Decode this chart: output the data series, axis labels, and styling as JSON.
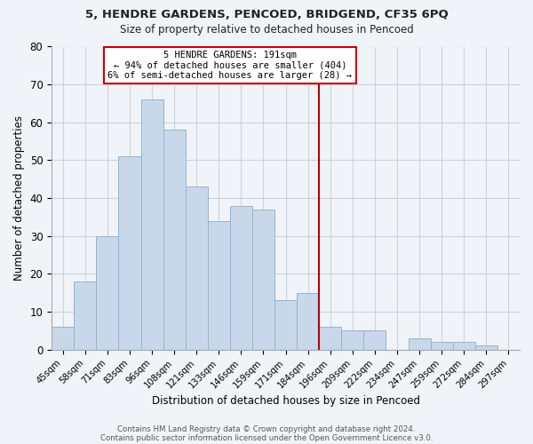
{
  "title1": "5, HENDRE GARDENS, PENCOED, BRIDGEND, CF35 6PQ",
  "title2": "Size of property relative to detached houses in Pencoed",
  "xlabel": "Distribution of detached houses by size in Pencoed",
  "ylabel": "Number of detached properties",
  "bar_labels": [
    "45sqm",
    "58sqm",
    "71sqm",
    "83sqm",
    "96sqm",
    "108sqm",
    "121sqm",
    "133sqm",
    "146sqm",
    "159sqm",
    "171sqm",
    "184sqm",
    "196sqm",
    "209sqm",
    "222sqm",
    "234sqm",
    "247sqm",
    "259sqm",
    "272sqm",
    "284sqm",
    "297sqm"
  ],
  "bar_values": [
    6,
    18,
    30,
    51,
    66,
    58,
    43,
    34,
    38,
    37,
    13,
    15,
    6,
    5,
    5,
    0,
    3,
    2,
    2,
    1,
    0
  ],
  "bar_color": "#c8d8ea",
  "bar_edge_color": "#93b4cc",
  "vline_color": "#bb0000",
  "annotation_title": "5 HENDRE GARDENS: 191sqm",
  "annotation_line1": "← 94% of detached houses are smaller (404)",
  "annotation_line2": "6% of semi-detached houses are larger (28) →",
  "annotation_box_color": "#ffffff",
  "annotation_border_color": "#cc0000",
  "ylim": [
    0,
    80
  ],
  "yticks": [
    0,
    10,
    20,
    30,
    40,
    50,
    60,
    70,
    80
  ],
  "grid_color": "#c8d4de",
  "footer1": "Contains HM Land Registry data © Crown copyright and database right 2024.",
  "footer2": "Contains public sector information licensed under the Open Government Licence v3.0.",
  "bg_color": "#f0f4f8"
}
